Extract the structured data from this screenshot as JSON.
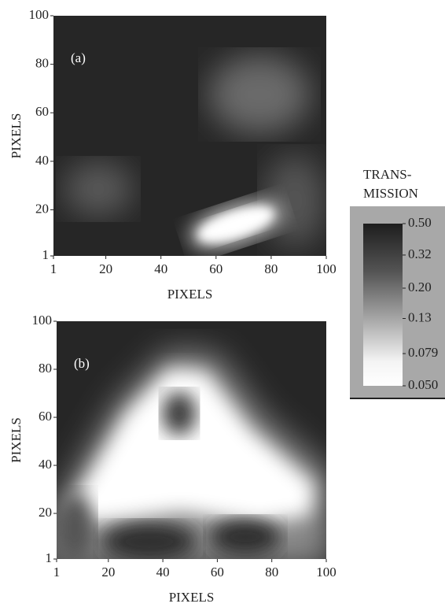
{
  "chart_data": [
    {
      "type": "heatmap",
      "panel_label": "(a)",
      "x_label": "PIXELS",
      "y_label": "PIXELS",
      "xlim": [
        1,
        100
      ],
      "ylim": [
        1,
        100
      ],
      "xticks": [
        1,
        20,
        40,
        60,
        80,
        100
      ],
      "yticks": [
        1,
        20,
        40,
        60,
        80,
        100
      ],
      "colorbar": {
        "title_lines": [
          "TRANS-",
          "MISSION"
        ],
        "log": true,
        "clim": [
          0.05,
          0.5
        ],
        "ticks": [
          {
            "value": 0.5,
            "label": "0.50"
          },
          0.32,
          {
            "value": 0.2,
            "label": "0.20"
          },
          0.13,
          0.079,
          {
            "value": 0.05,
            "label": "0.050"
          }
        ]
      }
    },
    {
      "type": "heatmap",
      "panel_label": "(b)",
      "x_label": "PIXELS",
      "y_label": "PIXELS",
      "xlim": [
        1,
        100
      ],
      "ylim": [
        1,
        100
      ],
      "xticks": [
        1,
        20,
        40,
        60,
        80,
        100
      ],
      "yticks": [
        1,
        20,
        40,
        60,
        80,
        100
      ]
    }
  ]
}
